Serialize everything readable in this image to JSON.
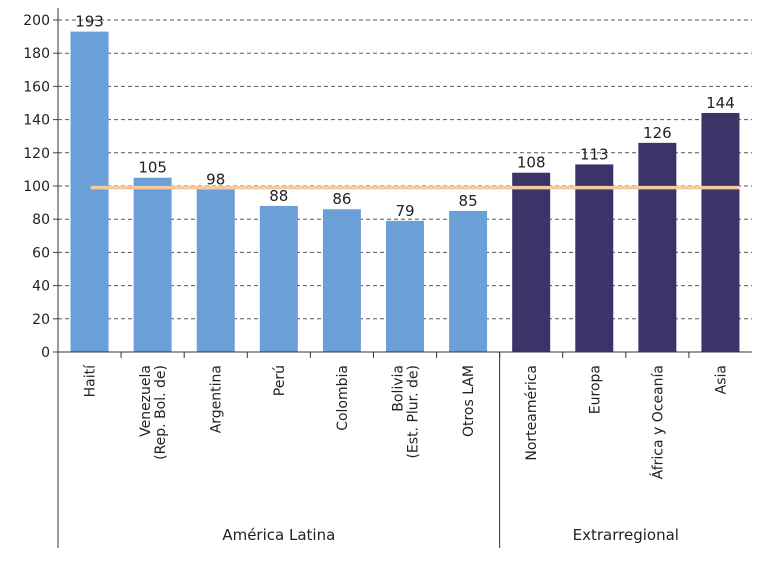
{
  "chart_data": {
    "type": "bar",
    "categories": [
      "Haití",
      "Venezuela\n(Rep. Bol. de)",
      "Argentina",
      "Perú",
      "Colombia",
      "Bolivia\n(Est. Plur. de)",
      "Otros LAM",
      "Norteamérica",
      "Europa",
      "África y Oceanía",
      "Asia"
    ],
    "values": [
      193,
      105,
      98,
      88,
      86,
      79,
      85,
      108,
      113,
      126,
      144
    ],
    "data_labels": [
      "193",
      "105",
      "98",
      "88",
      "86",
      "79",
      "85",
      "108",
      "113",
      "126",
      "144"
    ],
    "groups": [
      {
        "name": "América Latina",
        "categories": 7,
        "color": "#6a9fd8"
      },
      {
        "name": "Extrarregional",
        "categories": 4,
        "color": "#3a3468"
      }
    ],
    "reference_line": {
      "value": 99,
      "color": "#f6c9a0"
    },
    "yticks": [
      "0",
      "20",
      "40",
      "60",
      "80",
      "100",
      "120",
      "140",
      "160",
      "180",
      "200"
    ],
    "ylim": [
      0,
      200
    ],
    "grid": "horizontal-dashed",
    "title": "",
    "xlabel": "",
    "ylabel": ""
  }
}
